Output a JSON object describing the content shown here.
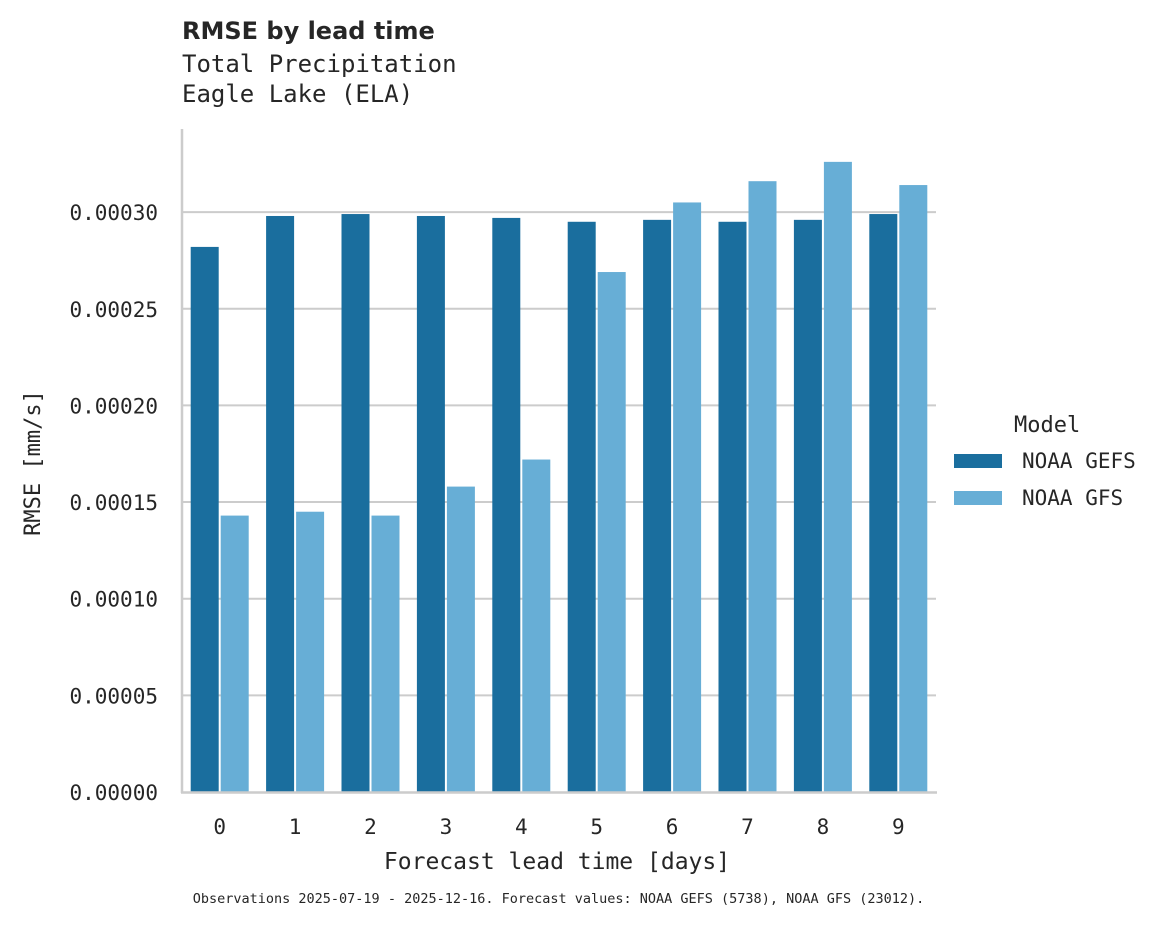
{
  "header": {
    "title": "RMSE by lead time",
    "subtitle_line1": "Total Precipitation",
    "subtitle_line2": "Eagle Lake (ELA)"
  },
  "legend": {
    "title": "Model",
    "items": [
      {
        "label": "NOAA GEFS",
        "color": "#1a6e9e"
      },
      {
        "label": "NOAA GFS",
        "color": "#67aed6"
      }
    ]
  },
  "footnote": "Observations 2025-07-19 - 2025-12-16. Forecast values: NOAA GEFS (5738), NOAA GFS (23012).",
  "chart_data": {
    "type": "bar",
    "title": "RMSE by lead time",
    "subtitle": "Total Precipitation / Eagle Lake (ELA)",
    "xlabel": "Forecast lead time [days]",
    "ylabel": "RMSE [mm/s]",
    "categories": [
      "0",
      "1",
      "2",
      "3",
      "4",
      "5",
      "6",
      "7",
      "8",
      "9"
    ],
    "series": [
      {
        "name": "NOAA GEFS",
        "color": "#1a6e9e",
        "values": [
          0.000282,
          0.000298,
          0.000299,
          0.000298,
          0.000297,
          0.000295,
          0.000296,
          0.000295,
          0.000296,
          0.000299
        ]
      },
      {
        "name": "NOAA GFS",
        "color": "#67aed6",
        "values": [
          0.000143,
          0.000145,
          0.000143,
          0.000158,
          0.000172,
          0.000269,
          0.000305,
          0.000316,
          0.000326,
          0.000314
        ]
      }
    ],
    "yticks": [
      0.0,
      5e-05,
      0.0001,
      0.00015,
      0.0002,
      0.00025,
      0.0003
    ],
    "ytick_labels": [
      "0.00000",
      "0.00005",
      "0.00010",
      "0.00015",
      "0.00020",
      "0.00025",
      "0.00030"
    ],
    "ylim": [
      0,
      0.000343
    ],
    "grid": "horizontal",
    "legend_position": "right"
  }
}
